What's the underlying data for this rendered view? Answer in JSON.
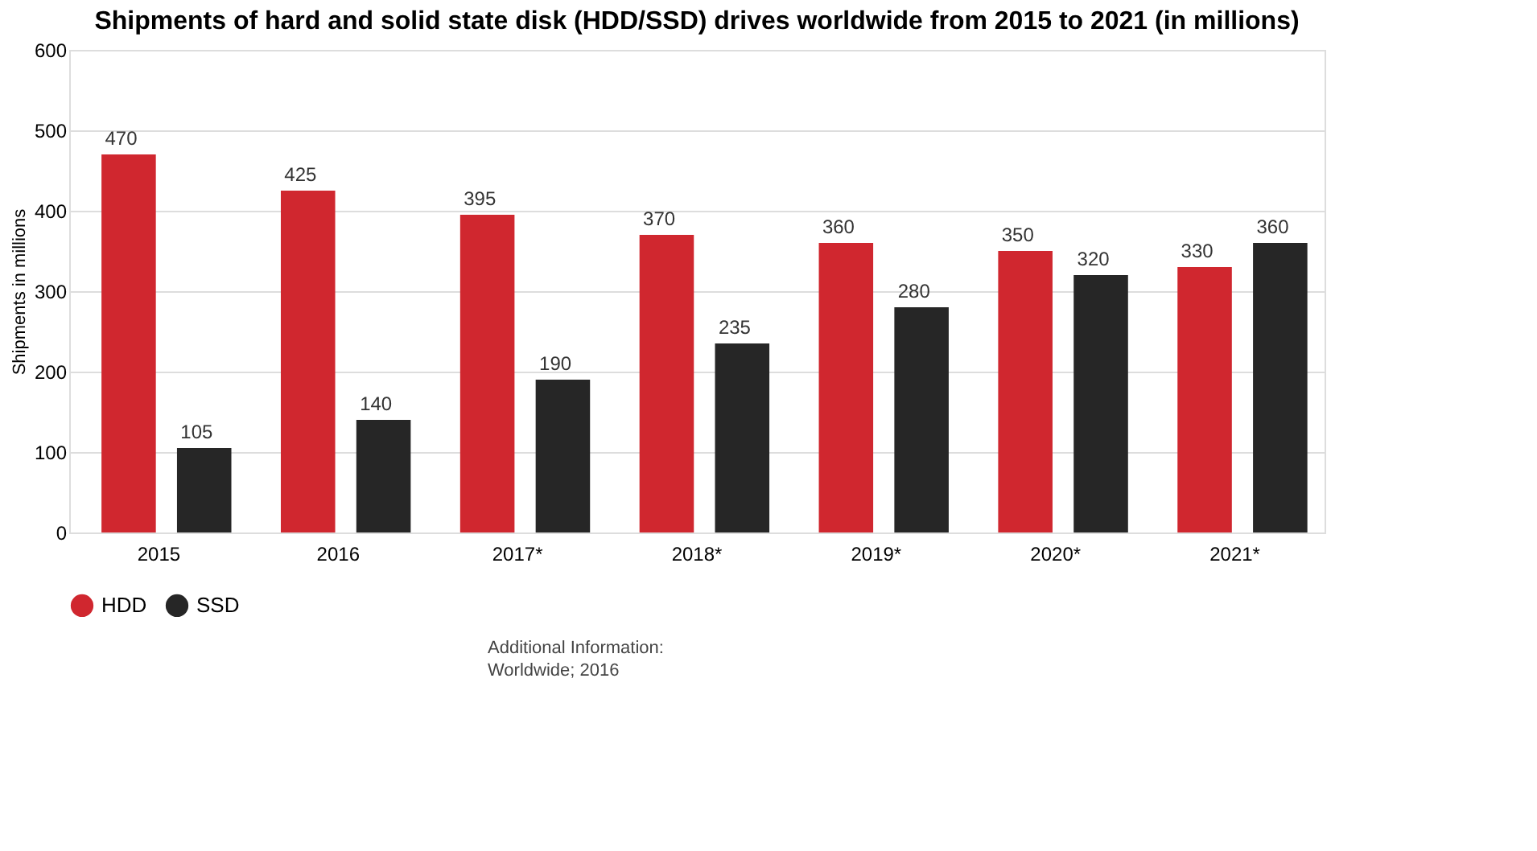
{
  "chart_data": {
    "type": "bar",
    "title": "Shipments of hard and solid state disk (HDD/SSD) drives worldwide from 2015 to 2021 (in millions)",
    "categories": [
      "2015",
      "2016",
      "2017*",
      "2018*",
      "2019*",
      "2020*",
      "2021*"
    ],
    "series": [
      {
        "name": "HDD",
        "color": "#d0272f",
        "values": [
          470,
          425,
          395,
          370,
          360,
          350,
          330
        ]
      },
      {
        "name": "SSD",
        "color": "#262626",
        "values": [
          105,
          140,
          190,
          235,
          280,
          320,
          360
        ]
      }
    ],
    "ylabel": "Shipments in millions",
    "ylim": [
      0,
      600
    ],
    "yticks": [
      0,
      100,
      200,
      300,
      400,
      500,
      600
    ],
    "grid": "y",
    "legend": "bottom",
    "data_labels": true,
    "annotations": [
      "Additional Information:",
      "Worldwide; 2016"
    ]
  }
}
